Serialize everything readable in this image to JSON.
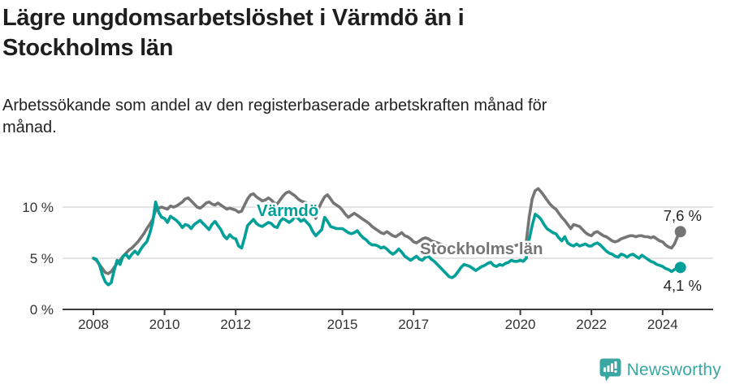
{
  "header": {
    "title": "Lägre ungdomsarbetslöshet i Värmdö än i Stockholms län",
    "subtitle": "Arbetssökande som andel av den registerbaserade arbetskraften månad för månad."
  },
  "footer": {
    "brand": "Newsworthy",
    "logo_icon": "newsworthy-bubble-barchart-icon"
  },
  "colors": {
    "varmdo": "#00a099",
    "stockholm": "#757575",
    "grid": "#dcdcdc",
    "axis": "#3a3a3a",
    "tick_text": "#333333",
    "end_label_text": "#222222",
    "brand_teal": "#3ba7a3"
  },
  "chart_data": {
    "type": "line",
    "title": "Lägre ungdomsarbetslöshet i Värmdö än i Stockholms län",
    "xlabel": "",
    "ylabel": "Arbetssökande som andel av den registerbaserade arbetskraften",
    "x_axis": {
      "start": 2008.0,
      "step_months": 1,
      "ticks": [
        2008,
        2010,
        2012,
        2015,
        2017,
        2020,
        2022,
        2024
      ]
    },
    "y_axis": {
      "ticks": [
        {
          "value": 0,
          "label": "0 %"
        },
        {
          "value": 5,
          "label": "5 %"
        },
        {
          "value": 10,
          "label": "10 %"
        }
      ],
      "ylim": [
        0,
        12.4
      ]
    },
    "grid": "horizontal-only",
    "legend_position": "inline-labels",
    "series": [
      {
        "name": "Stockholms län",
        "color": "#757575",
        "end_label": "7,6 %",
        "end_value": 7.6,
        "values": [
          5.0,
          4.8,
          4.4,
          4.0,
          3.6,
          3.5,
          3.7,
          4.1,
          4.5,
          4.8,
          5.2,
          5.5,
          5.8,
          6.0,
          6.3,
          6.6,
          7.0,
          7.4,
          7.9,
          8.3,
          8.8,
          9.7,
          9.9,
          10.0,
          9.9,
          9.8,
          10.1,
          10.0,
          10.1,
          10.3,
          10.5,
          10.8,
          10.9,
          10.6,
          10.3,
          10.0,
          9.9,
          10.1,
          10.4,
          10.5,
          10.3,
          10.2,
          10.4,
          10.2,
          10.0,
          9.8,
          9.9,
          9.8,
          9.7,
          9.5,
          9.6,
          10.2,
          10.8,
          11.2,
          11.3,
          11.0,
          10.8,
          10.6,
          10.7,
          10.9,
          10.7,
          10.4,
          10.3,
          10.7,
          11.1,
          11.4,
          11.5,
          11.3,
          11.1,
          10.8,
          10.6,
          10.5,
          10.4,
          10.1,
          9.7,
          8.9,
          9.9,
          10.5,
          11.0,
          11.2,
          10.8,
          10.4,
          10.2,
          10.0,
          9.7,
          9.3,
          9.0,
          9.2,
          9.4,
          9.2,
          9.0,
          8.8,
          8.6,
          8.4,
          8.1,
          7.9,
          7.7,
          7.5,
          7.4,
          7.6,
          7.4,
          7.2,
          7.1,
          7.3,
          7.5,
          7.2,
          7.1,
          6.9,
          6.6,
          6.5,
          6.7,
          6.9,
          7.0,
          6.9,
          6.7,
          6.6,
          6.5,
          6.4,
          6.3,
          6.2,
          6.1,
          6.0,
          6.0,
          6.1,
          6.1,
          6.0,
          5.9,
          5.9,
          5.8,
          5.7,
          5.8,
          5.8,
          5.9,
          5.8,
          5.8,
          5.9,
          5.9,
          6.0,
          6.0,
          6.0,
          6.1,
          6.1,
          6.2,
          6.3,
          6.3,
          6.3,
          6.6,
          9.0,
          10.8,
          11.6,
          11.8,
          11.5,
          11.1,
          10.7,
          10.3,
          10.0,
          9.8,
          9.4,
          9.0,
          8.7,
          8.3,
          7.9,
          8.3,
          8.2,
          8.1,
          7.8,
          7.5,
          7.3,
          7.2,
          7.5,
          7.6,
          7.4,
          7.2,
          7.1,
          6.9,
          6.7,
          6.6,
          6.7,
          6.9,
          7.0,
          7.1,
          7.2,
          7.2,
          7.1,
          7.2,
          7.2,
          7.1,
          7.1,
          7.0,
          7.1,
          6.9,
          6.7,
          6.6,
          6.3,
          6.1,
          6.0,
          6.4,
          7.1,
          7.6
        ]
      },
      {
        "name": "Värmdö",
        "color": "#00a099",
        "end_label": "4,1 %",
        "end_value": 4.1,
        "values": [
          5.0,
          4.9,
          4.4,
          3.4,
          2.7,
          2.4,
          2.6,
          3.8,
          4.8,
          4.4,
          5.2,
          5.4,
          5.0,
          5.4,
          5.7,
          5.4,
          5.9,
          6.3,
          6.6,
          7.4,
          8.5,
          10.5,
          9.5,
          9.0,
          8.9,
          8.5,
          9.1,
          8.9,
          8.7,
          8.4,
          8.0,
          8.3,
          8.2,
          7.9,
          8.3,
          8.5,
          8.7,
          8.4,
          8.1,
          7.8,
          8.3,
          8.6,
          8.2,
          7.8,
          7.2,
          6.9,
          7.3,
          7.0,
          6.9,
          6.2,
          6.0,
          7.0,
          8.2,
          8.5,
          8.8,
          8.4,
          8.2,
          8.1,
          8.3,
          8.5,
          8.4,
          8.1,
          8.0,
          8.6,
          8.9,
          8.7,
          8.5,
          8.7,
          9.1,
          8.9,
          8.6,
          8.8,
          8.5,
          8.2,
          7.6,
          7.2,
          7.5,
          7.8,
          9.0,
          8.6,
          8.1,
          8.0,
          7.9,
          7.9,
          7.9,
          7.7,
          7.5,
          7.4,
          7.5,
          7.7,
          7.3,
          7.0,
          6.8,
          6.5,
          6.3,
          6.3,
          6.2,
          6.0,
          6.1,
          5.9,
          5.6,
          5.4,
          5.6,
          5.9,
          5.6,
          5.2,
          5.0,
          4.8,
          5.0,
          5.2,
          4.9,
          4.8,
          5.1,
          5.2,
          4.9,
          4.7,
          4.4,
          4.1,
          3.8,
          3.5,
          3.2,
          3.1,
          3.3,
          3.7,
          4.1,
          4.4,
          4.3,
          4.2,
          4.0,
          3.8,
          4.0,
          4.2,
          4.3,
          4.5,
          4.6,
          4.3,
          4.2,
          4.4,
          4.3,
          4.5,
          4.6,
          4.8,
          4.7,
          4.7,
          4.8,
          4.7,
          5.0,
          6.8,
          8.2,
          9.3,
          9.1,
          8.8,
          8.3,
          7.9,
          7.7,
          7.5,
          7.4,
          7.0,
          6.7,
          7.1,
          6.5,
          6.3,
          6.2,
          6.4,
          6.2,
          6.3,
          6.4,
          6.2,
          6.2,
          6.4,
          6.5,
          6.3,
          6.0,
          5.7,
          5.5,
          5.4,
          5.2,
          5.1,
          5.4,
          5.3,
          5.1,
          5.3,
          5.4,
          5.2,
          5.0,
          5.3,
          5.1,
          4.9,
          4.7,
          4.6,
          4.4,
          4.3,
          4.2,
          4.0,
          3.9,
          3.7,
          3.9,
          4.0,
          4.1
        ]
      }
    ]
  }
}
